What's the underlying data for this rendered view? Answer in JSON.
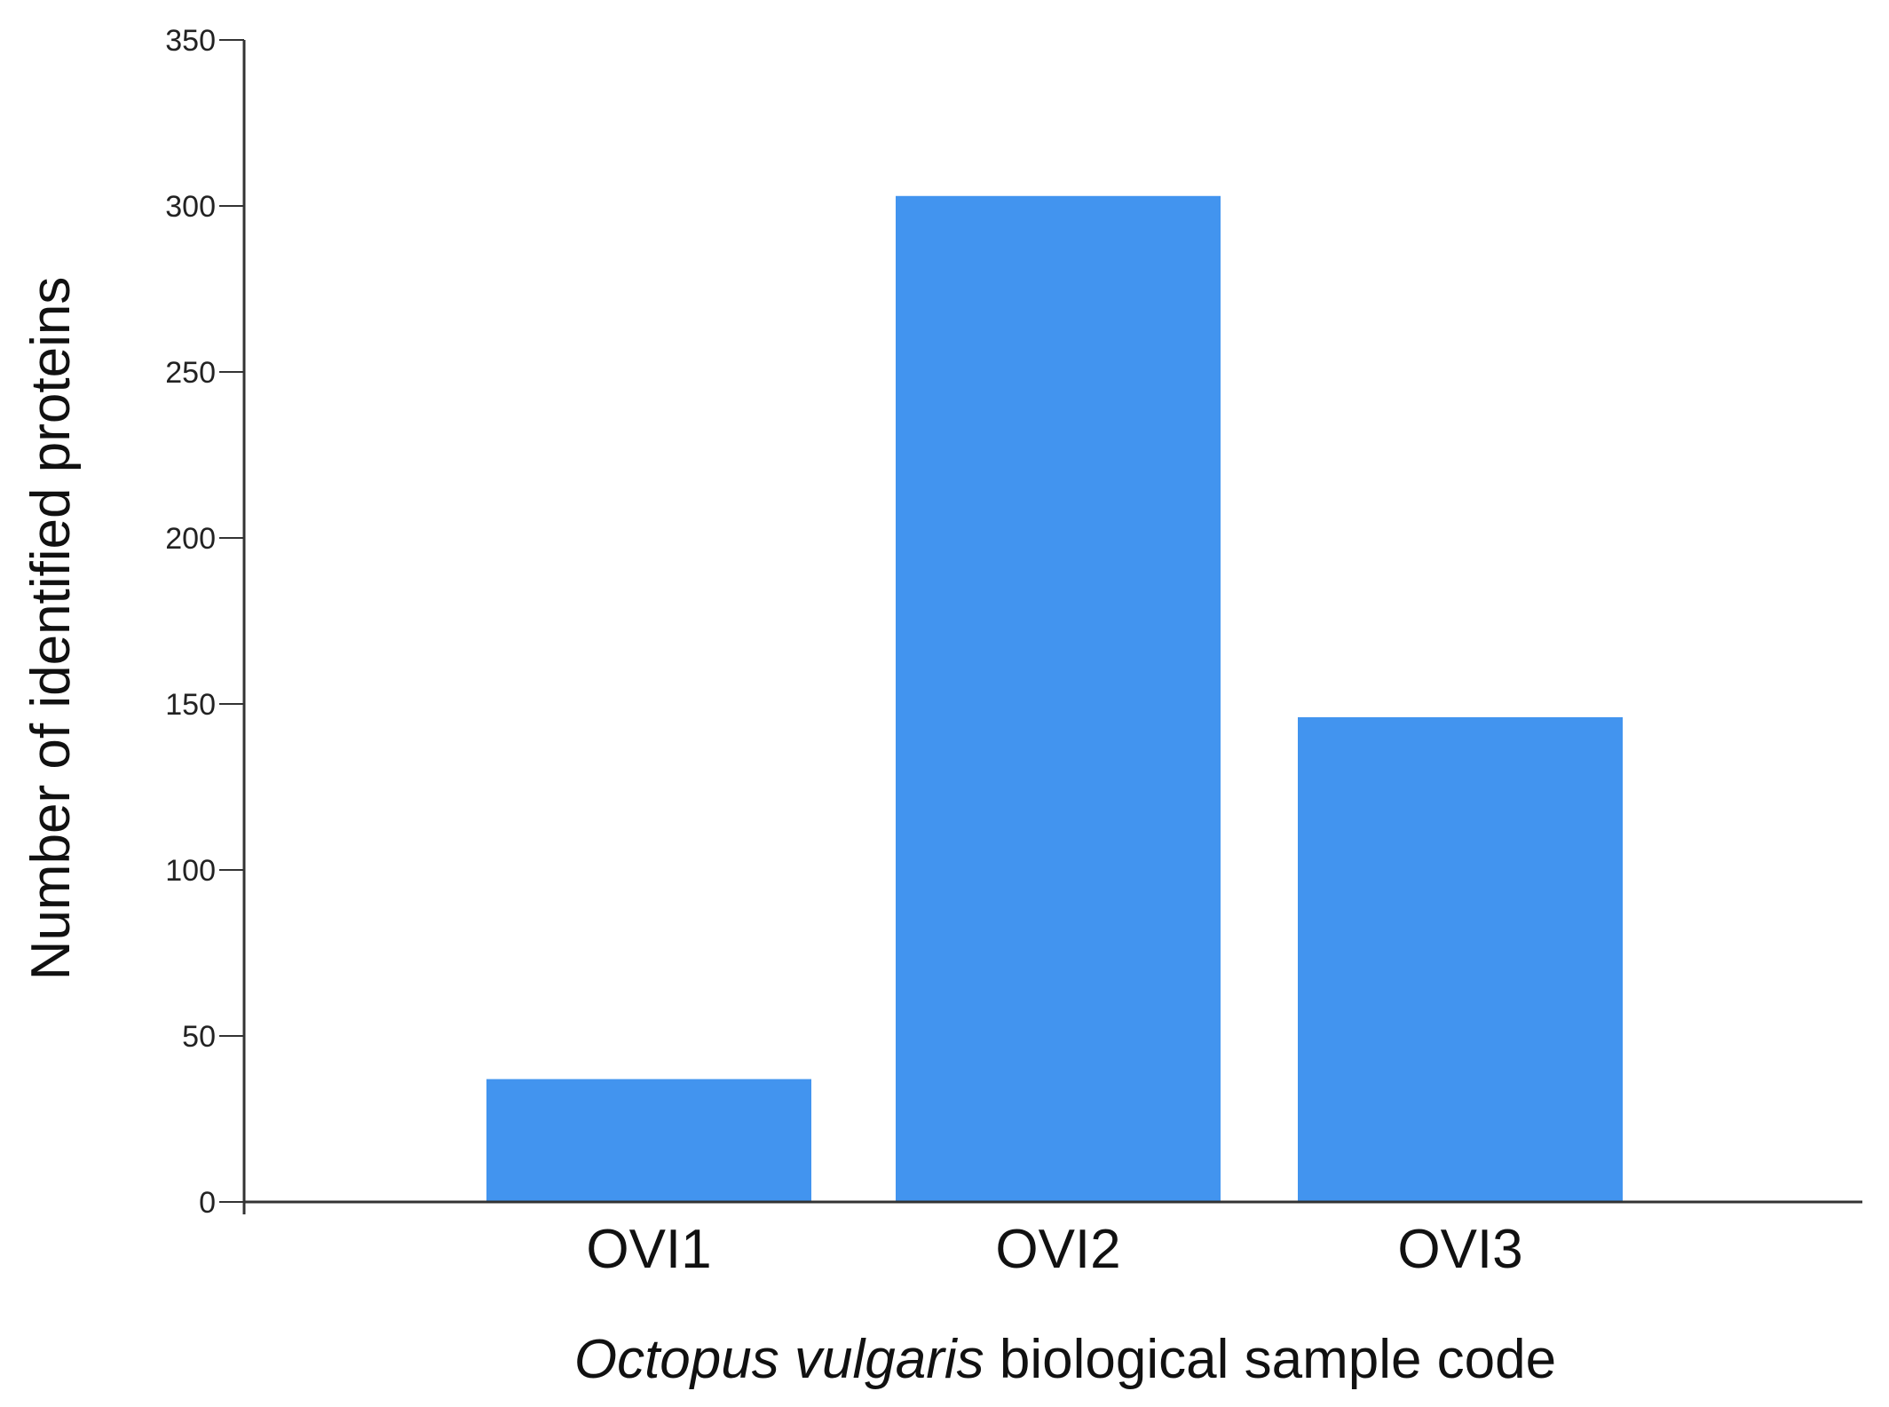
{
  "chart_data": {
    "type": "bar",
    "categories": [
      "OVI1",
      "OVI2",
      "OVI3"
    ],
    "values": [
      37,
      303,
      146
    ],
    "ylabel": "Number of identified proteins",
    "xlabel": {
      "italic_part": "Octopus vulgaris",
      "rest": " biological sample code"
    },
    "ylim": [
      0,
      350
    ],
    "yticks": [
      0,
      50,
      100,
      150,
      200,
      250,
      300,
      350
    ],
    "grid": false,
    "bar_color": "#4294ef",
    "axis_color": "#333333"
  }
}
